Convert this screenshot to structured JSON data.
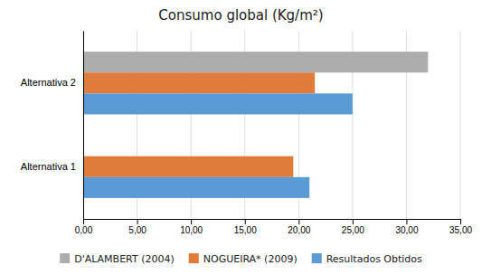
{
  "chart_data": {
    "type": "bar",
    "orientation": "horizontal",
    "title": "Consumo global (Kg/m²)",
    "categories": [
      "Alternativa 1",
      "Alternativa 2"
    ],
    "series": [
      {
        "name": "D'ALAMBERT (2004)",
        "color": "#ADADAD",
        "values": [
          null,
          32.0
        ]
      },
      {
        "name": "NOGUEIRA* (2009)",
        "color": "#E07B39",
        "values": [
          19.5,
          21.5
        ]
      },
      {
        "name": "Resultados Obtidos",
        "color": "#5B9BD5",
        "values": [
          21.0,
          25.0
        ]
      }
    ],
    "xlim": [
      0,
      35
    ],
    "xticks": [
      {
        "value": 0,
        "label": "0,00"
      },
      {
        "value": 5,
        "label": "5,00"
      },
      {
        "value": 10,
        "label": "10,00"
      },
      {
        "value": 15,
        "label": "15,00"
      },
      {
        "value": 20,
        "label": "20,00"
      },
      {
        "value": 25,
        "label": "25,00"
      },
      {
        "value": 30,
        "label": "30,00"
      },
      {
        "value": 35,
        "label": "35,00"
      }
    ],
    "grid": true,
    "legend": "bottom"
  }
}
